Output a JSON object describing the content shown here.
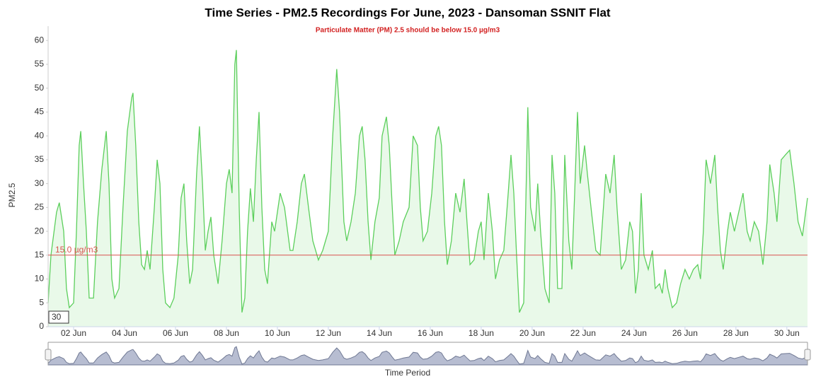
{
  "chart_data": {
    "type": "area",
    "title": "Time Series - PM2.5 Recordings For June, 2023 - Dansoman SSNIT Flat",
    "subtitle": "Particulate Matter (PM) 2.5 should be below 15.0 µg/m3",
    "y_label": "PM2.5",
    "x_label": "Time Period",
    "range_input": "30",
    "threshold": {
      "value": 15,
      "label": "15.0 µg/m3",
      "color": "#d9534f"
    },
    "color": "#5ccf5c",
    "fill": "#e9f9e9",
    "navigator_color": "#b7bdd1",
    "xlim": [
      1,
      30.81
    ],
    "ylim": [
      0,
      63
    ],
    "yticks": [
      0,
      5,
      10,
      15,
      20,
      25,
      30,
      35,
      40,
      45,
      50,
      55,
      60
    ],
    "xticks": [
      {
        "value": 2,
        "label": "02 Jun"
      },
      {
        "value": 4,
        "label": "04 Jun"
      },
      {
        "value": 6,
        "label": "06 Jun"
      },
      {
        "value": 8,
        "label": "08 Jun"
      },
      {
        "value": 10,
        "label": "10 Jun"
      },
      {
        "value": 12,
        "label": "12 Jun"
      },
      {
        "value": 14,
        "label": "14 Jun"
      },
      {
        "value": 16,
        "label": "16 Jun"
      },
      {
        "value": 18,
        "label": "18 Jun"
      },
      {
        "value": 20,
        "label": "20 Jun"
      },
      {
        "value": 22,
        "label": "22 Jun"
      },
      {
        "value": 24,
        "label": "24 Jun"
      },
      {
        "value": 26,
        "label": "26 Jun"
      },
      {
        "value": 28,
        "label": "28 Jun"
      },
      {
        "value": 30,
        "label": "30 Jun"
      }
    ],
    "x": [
      1.0,
      1.11,
      1.33,
      1.44,
      1.61,
      1.72,
      1.83,
      2.0,
      2.11,
      2.22,
      2.28,
      2.39,
      2.5,
      2.61,
      2.78,
      2.94,
      3.11,
      3.28,
      3.39,
      3.5,
      3.61,
      3.78,
      3.94,
      4.11,
      4.28,
      4.33,
      4.44,
      4.56,
      4.67,
      4.78,
      4.89,
      5.0,
      5.17,
      5.28,
      5.39,
      5.5,
      5.61,
      5.78,
      5.94,
      6.11,
      6.22,
      6.33,
      6.44,
      6.56,
      6.67,
      6.83,
      6.94,
      7.06,
      7.17,
      7.28,
      7.39,
      7.5,
      7.67,
      7.83,
      8.0,
      8.11,
      8.22,
      8.33,
      8.39,
      8.5,
      8.61,
      8.72,
      8.83,
      8.94,
      9.06,
      9.17,
      9.28,
      9.39,
      9.5,
      9.61,
      9.78,
      9.89,
      10.11,
      10.28,
      10.5,
      10.61,
      10.78,
      10.94,
      11.06,
      11.22,
      11.39,
      11.61,
      11.78,
      12.0,
      12.17,
      12.33,
      12.44,
      12.61,
      12.72,
      12.89,
      13.06,
      13.22,
      13.33,
      13.44,
      13.56,
      13.67,
      13.83,
      14.0,
      14.11,
      14.28,
      14.39,
      14.5,
      14.61,
      14.78,
      14.94,
      15.17,
      15.33,
      15.5,
      15.61,
      15.72,
      15.89,
      16.06,
      16.22,
      16.33,
      16.44,
      16.56,
      16.67,
      16.83,
      17.0,
      17.17,
      17.33,
      17.44,
      17.56,
      17.72,
      17.89,
      18.0,
      18.11,
      18.28,
      18.44,
      18.56,
      18.72,
      18.89,
      19.06,
      19.17,
      19.28,
      19.39,
      19.5,
      19.67,
      19.83,
      19.94,
      20.11,
      20.22,
      20.33,
      20.5,
      20.67,
      20.78,
      20.89,
      21.0,
      21.17,
      21.28,
      21.44,
      21.56,
      21.67,
      21.78,
      21.89,
      22.06,
      22.17,
      22.33,
      22.5,
      22.67,
      22.89,
      23.06,
      23.22,
      23.33,
      23.5,
      23.67,
      23.83,
      23.94,
      24.06,
      24.17,
      24.28,
      24.39,
      24.56,
      24.72,
      24.83,
      25.0,
      25.11,
      25.22,
      25.33,
      25.5,
      25.67,
      25.83,
      26.0,
      26.17,
      26.33,
      26.5,
      26.61,
      26.72,
      26.83,
      27.0,
      27.17,
      27.28,
      27.39,
      27.5,
      27.67,
      27.78,
      27.94,
      28.11,
      28.28,
      28.44,
      28.56,
      28.72,
      28.89,
      29.06,
      29.22,
      29.33,
      29.5,
      29.61,
      29.78,
      29.94,
      30.11,
      30.28,
      30.44,
      30.61,
      30.81
    ],
    "values": [
      5,
      15,
      24,
      26,
      20,
      8,
      4,
      5,
      20,
      38,
      41,
      30,
      20,
      6,
      6,
      22,
      33,
      41,
      30,
      10,
      6,
      8,
      25,
      41,
      48,
      49,
      38,
      22,
      13,
      12,
      16,
      12,
      25,
      35,
      30,
      12,
      5,
      4,
      6,
      15,
      27,
      30,
      18,
      9,
      12,
      32,
      42,
      30,
      16,
      20,
      23,
      15,
      9,
      18,
      30,
      33,
      28,
      55,
      58,
      25,
      3,
      6,
      20,
      29,
      22,
      35,
      45,
      25,
      12,
      9,
      22,
      20,
      28,
      25,
      16,
      16,
      22,
      30,
      32,
      25,
      18,
      14,
      16,
      20,
      40,
      54,
      45,
      22,
      18,
      22,
      28,
      40,
      42,
      35,
      22,
      14,
      22,
      27,
      40,
      44,
      38,
      26,
      15,
      18,
      22,
      25,
      40,
      38,
      25,
      18,
      20,
      28,
      40,
      42,
      38,
      22,
      13,
      18,
      28,
      24,
      31,
      22,
      13,
      14,
      20,
      22,
      14,
      28,
      20,
      10,
      14,
      16,
      28,
      36,
      28,
      15,
      3,
      5,
      46,
      25,
      20,
      30,
      20,
      8,
      5,
      36,
      28,
      8,
      8,
      36,
      18,
      12,
      28,
      45,
      30,
      38,
      32,
      24,
      16,
      15,
      32,
      28,
      36,
      25,
      12,
      14,
      22,
      20,
      7,
      12,
      28,
      15,
      12,
      16,
      8,
      9,
      7,
      12,
      8,
      4,
      5,
      9,
      12,
      10,
      12,
      13,
      10,
      20,
      35,
      30,
      36,
      25,
      16,
      12,
      20,
      24,
      20,
      24,
      28,
      20,
      18,
      22,
      20,
      13,
      22,
      34,
      28,
      22,
      35,
      36,
      37,
      30,
      22,
      19,
      27
    ]
  }
}
